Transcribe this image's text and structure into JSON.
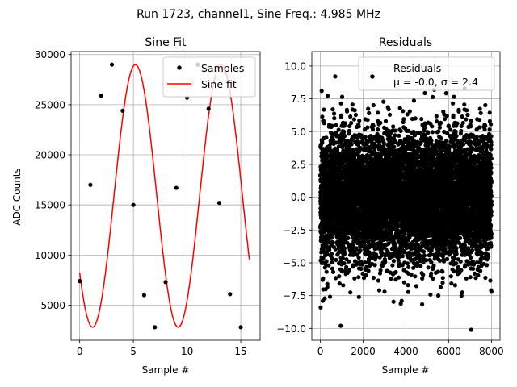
{
  "figure_title": "Run 1723, channel1, Sine Freq.: 4.985 MHz",
  "chart_data": [
    {
      "type": "line",
      "title": "Sine Fit",
      "xlabel": "Sample #",
      "ylabel": "ADC Counts",
      "xlim": [
        -0.8,
        16.8
      ],
      "ylim": [
        1500,
        30300
      ],
      "xticks": [
        0,
        5,
        10,
        15
      ],
      "xtick_labels": [
        "0",
        "5",
        "10",
        "15"
      ],
      "yticks": [
        5000,
        10000,
        15000,
        20000,
        25000,
        30000
      ],
      "ytick_labels": [
        "5000",
        "10000",
        "15000",
        "20000",
        "25000",
        "30000"
      ],
      "grid": true,
      "legend_position": "top-right",
      "series": [
        {
          "name": "Samples",
          "kind": "scatter",
          "color": "#000000",
          "x": [
            0,
            1,
            2,
            3,
            4,
            5,
            6,
            7,
            8,
            9,
            10,
            11,
            12,
            13,
            14,
            15
          ],
          "y": [
            7400,
            17000,
            25900,
            29000,
            24400,
            15000,
            6000,
            2800,
            7300,
            16700,
            25700,
            29000,
            24600,
            15200,
            6100,
            2800
          ]
        },
        {
          "name": "Sine fit",
          "kind": "line",
          "color": "#ff0000",
          "x_range": [
            0,
            15.8
          ],
          "model": {
            "offset": 15900,
            "amplitude": 13100,
            "period": 7.975,
            "phase_deg": 144.2
          }
        }
      ]
    },
    {
      "type": "scatter",
      "title": "Residuals",
      "xlabel": "Sample #",
      "ylabel": "",
      "xlim": [
        -400,
        8400
      ],
      "ylim": [
        -10.9,
        11.1
      ],
      "xticks": [
        0,
        2000,
        4000,
        6000,
        8000
      ],
      "xtick_labels": [
        "0",
        "2000",
        "4000",
        "6000",
        "8000"
      ],
      "yticks": [
        -10.0,
        -7.5,
        -5.0,
        -2.5,
        0.0,
        2.5,
        5.0,
        7.5,
        10.0
      ],
      "ytick_labels": [
        "−10.0",
        "−7.5",
        "−5.0",
        "−2.5",
        "0.0",
        "2.5",
        "5.0",
        "7.5",
        "10.0"
      ],
      "grid": true,
      "legend_position": "top-right",
      "series": [
        {
          "name": "Residuals",
          "stats": "μ = -0.0, σ = 2.4",
          "color": "#000000",
          "n_points": 8000,
          "x_range": [
            0,
            8000
          ],
          "mean": 0.0,
          "std": 2.4,
          "outliers": [
            {
              "x": 690,
              "y": 9.2
            },
            {
              "x": 2400,
              "y": 9.2
            },
            {
              "x": 10,
              "y": -8.4
            },
            {
              "x": 110,
              "y": -7.9
            },
            {
              "x": 950,
              "y": -9.8
            },
            {
              "x": 1800,
              "y": -7.6
            },
            {
              "x": 3000,
              "y": -7.2
            },
            {
              "x": 3800,
              "y": -7.9
            },
            {
              "x": 6600,
              "y": -7.5
            },
            {
              "x": 7050,
              "y": -10.1
            },
            {
              "x": 8000,
              "y": -7.2
            },
            {
              "x": 6750,
              "y": 8.3
            },
            {
              "x": 60,
              "y": 8.1
            }
          ]
        }
      ]
    }
  ]
}
